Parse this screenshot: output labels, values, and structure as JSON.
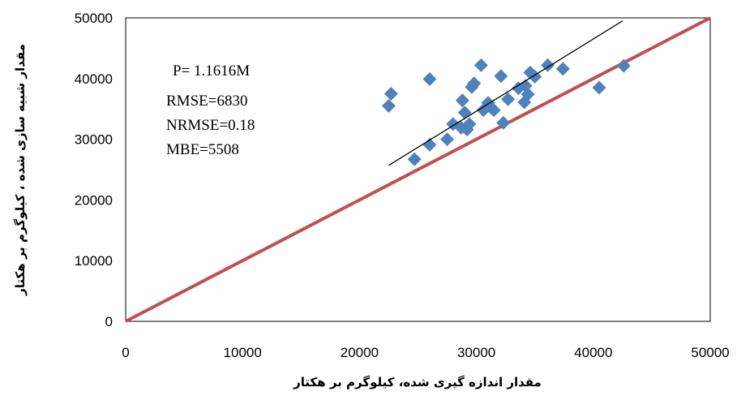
{
  "chart_data": {
    "type": "scatter",
    "xlabel": "مقدار اندازه گیری شده، کیلوگرم بر هکتار",
    "ylabel": "مقدار شبیه سازی شده ، کیلوگرم بر هکتار",
    "xlim": [
      0,
      50000
    ],
    "ylim": [
      0,
      50000
    ],
    "xticks": [
      "0",
      "10000",
      "20000",
      "30000",
      "40000",
      "50000"
    ],
    "yticks": [
      "0",
      "10000",
      "20000",
      "30000",
      "40000",
      "50000"
    ],
    "grid": false,
    "legend": "none",
    "annotations": [
      "P= 1.1616M",
      "RMSE=6830",
      "NRMSE=0.18",
      "MBE=5508"
    ],
    "marker_color": "#4f81bd",
    "one_to_one_line": {
      "from": [
        0,
        0
      ],
      "to": [
        50000,
        50000
      ],
      "color": "#c0504d"
    },
    "trend_line": {
      "from": [
        22500,
        25700
      ],
      "to": [
        42500,
        49500
      ],
      "color": "#000000"
    },
    "points": [
      [
        22500,
        35500
      ],
      [
        22700,
        37500
      ],
      [
        24700,
        26700
      ],
      [
        26000,
        29100
      ],
      [
        26000,
        39900
      ],
      [
        27500,
        30000
      ],
      [
        28000,
        32500
      ],
      [
        28700,
        31900
      ],
      [
        28800,
        36400
      ],
      [
        29000,
        34400
      ],
      [
        29200,
        31600
      ],
      [
        29400,
        32500
      ],
      [
        29600,
        38600
      ],
      [
        29800,
        39200
      ],
      [
        30400,
        42200
      ],
      [
        30600,
        34800
      ],
      [
        31000,
        36000
      ],
      [
        31200,
        35300
      ],
      [
        31500,
        34800
      ],
      [
        32100,
        40400
      ],
      [
        32300,
        32700
      ],
      [
        32700,
        36600
      ],
      [
        33600,
        38400
      ],
      [
        34100,
        36100
      ],
      [
        34200,
        38800
      ],
      [
        34400,
        37400
      ],
      [
        34600,
        41000
      ],
      [
        35000,
        40300
      ],
      [
        36100,
        42200
      ],
      [
        37400,
        41600
      ],
      [
        40500,
        38500
      ],
      [
        42600,
        42100
      ]
    ]
  }
}
